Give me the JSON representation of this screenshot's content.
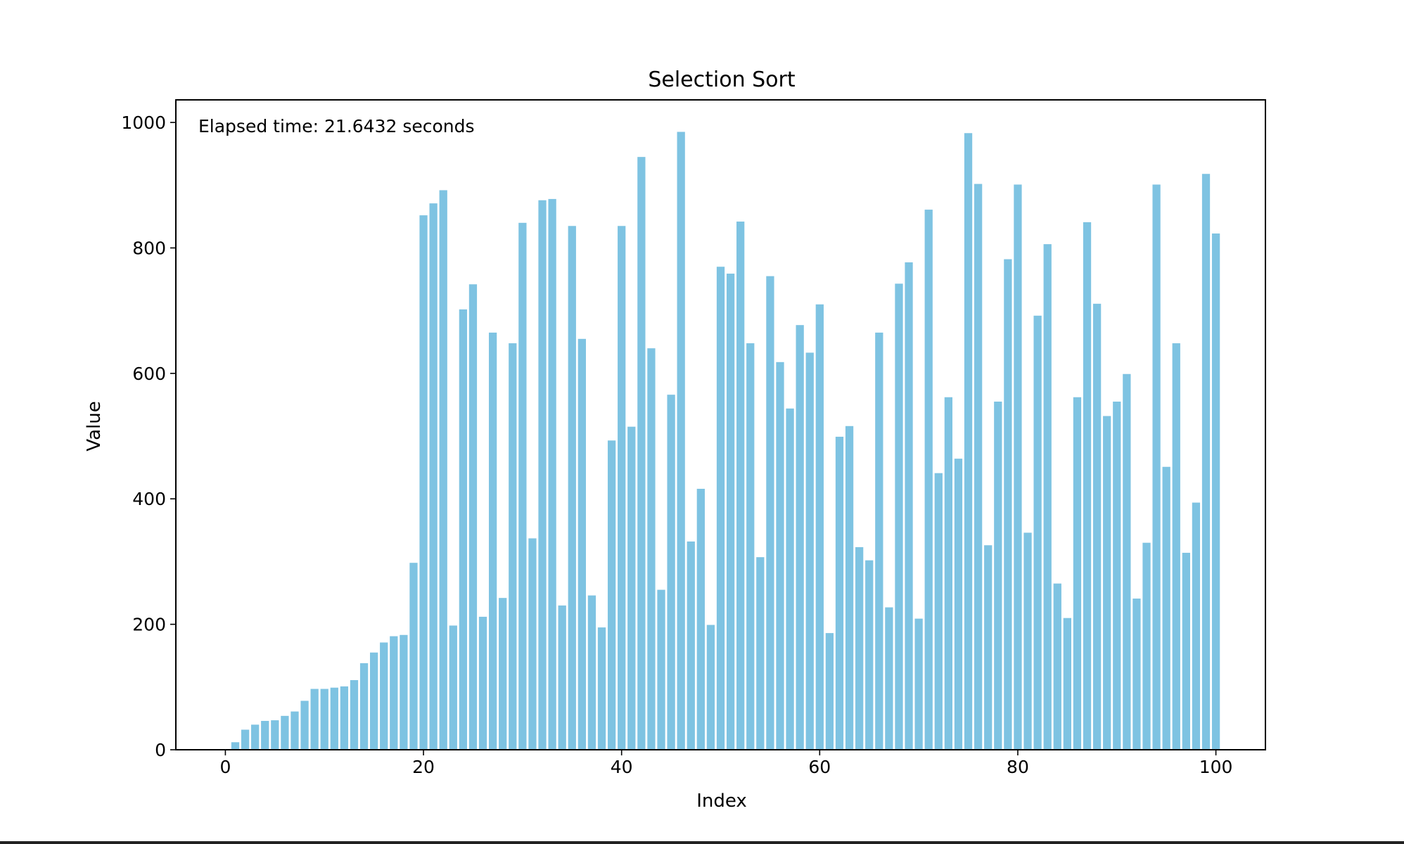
{
  "colors": {
    "bar": "#7ec3e2",
    "axis": "#000000",
    "background": "#ffffff"
  },
  "chart_data": {
    "type": "bar",
    "title": "Selection Sort",
    "xlabel": "Index",
    "ylabel": "Value",
    "annotation": "Elapsed time: 21.6432 seconds",
    "xlim": [
      -5,
      105
    ],
    "ylim": [
      0,
      1036
    ],
    "xticks": [
      0,
      20,
      40,
      60,
      80,
      100
    ],
    "yticks": [
      0,
      200,
      400,
      600,
      800,
      1000
    ],
    "grid": false,
    "x": [
      0,
      1,
      2,
      3,
      4,
      5,
      6,
      7,
      8,
      9,
      10,
      11,
      12,
      13,
      14,
      15,
      16,
      17,
      18,
      19,
      20,
      21,
      22,
      23,
      24,
      25,
      26,
      27,
      28,
      29,
      30,
      31,
      32,
      33,
      34,
      35,
      36,
      37,
      38,
      39,
      40,
      41,
      42,
      43,
      44,
      45,
      46,
      47,
      48,
      49,
      50,
      51,
      52,
      53,
      54,
      55,
      56,
      57,
      58,
      59,
      60,
      61,
      62,
      63,
      64,
      65,
      66,
      67,
      68,
      69,
      70,
      71,
      72,
      73,
      74,
      75,
      76,
      77,
      78,
      79,
      80,
      81,
      82,
      83,
      84,
      85,
      86,
      87,
      88,
      89,
      90,
      91,
      92,
      93,
      94,
      95,
      96,
      97,
      98,
      99,
      100
    ],
    "values": [
      1,
      12,
      32,
      40,
      46,
      47,
      54,
      61,
      78,
      97,
      97,
      99,
      101,
      111,
      138,
      155,
      171,
      181,
      183,
      298,
      852,
      871,
      892,
      198,
      702,
      742,
      212,
      665,
      242,
      648,
      840,
      337,
      876,
      878,
      230,
      835,
      655,
      246,
      195,
      493,
      835,
      515,
      945,
      640,
      255,
      566,
      985,
      332,
      416,
      199,
      770,
      759,
      842,
      648,
      307,
      755,
      618,
      544,
      677,
      633,
      710,
      186,
      499,
      516,
      323,
      302,
      665,
      227,
      743,
      777,
      209,
      861,
      441,
      562,
      464,
      983,
      902,
      326,
      555,
      782,
      901,
      346,
      692,
      806,
      265,
      210,
      562,
      841,
      711,
      532,
      555,
      599,
      241,
      330,
      901,
      451,
      648,
      314,
      394,
      918,
      823
    ]
  }
}
